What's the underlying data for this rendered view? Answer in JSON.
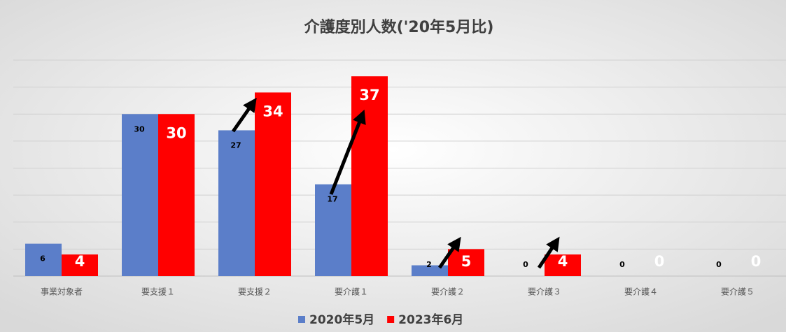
{
  "chart_data": {
    "type": "bar",
    "title": "介護度別人数('20年5月比)",
    "categories": [
      "事業対象者",
      "要支援１",
      "要支援２",
      "要介護１",
      "要介護２",
      "要介護３",
      "要介護４",
      "要介護５"
    ],
    "series": [
      {
        "name": "2020年5月",
        "color": "#5b7ec9",
        "values": [
          6,
          30,
          27,
          17,
          2,
          0,
          0,
          0
        ]
      },
      {
        "name": "2023年6月",
        "color": "#ff0000",
        "values": [
          4,
          30,
          34,
          37,
          5,
          4,
          0,
          0
        ]
      }
    ],
    "ylim": [
      0,
      40
    ],
    "yticks": [
      0,
      5,
      10,
      15,
      20,
      25,
      30,
      35,
      40
    ],
    "grid": true,
    "legend": "bottom"
  }
}
